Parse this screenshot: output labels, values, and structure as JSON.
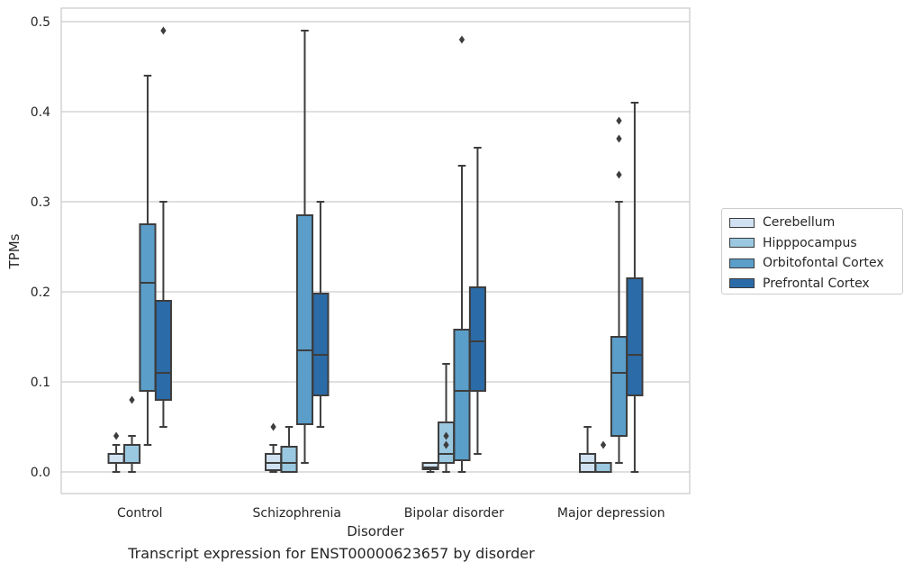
{
  "chart_data": {
    "type": "box",
    "xlabel": "Disorder",
    "ylabel": "TPMs",
    "caption": "Transcript expression for ENST00000623657 by disorder",
    "ylim": [
      -0.024,
      0.515
    ],
    "yticks": [
      0.0,
      0.1,
      0.2,
      0.3,
      0.4,
      0.5
    ],
    "ytick_labels": [
      "0.0",
      "0.1",
      "0.2",
      "0.3",
      "0.4",
      "0.5"
    ],
    "grid": true,
    "legend_position": "right",
    "categories": [
      "Control",
      "Schizophrenia",
      "Bipolar disorder",
      "Major depression"
    ],
    "series": [
      {
        "name": "Cerebellum",
        "color": "#d0e2f2",
        "boxes": [
          {
            "whislo": 0.0,
            "q1": 0.01,
            "med": 0.01,
            "q3": 0.02,
            "whishi": 0.03,
            "fliers": [
              0.04
            ]
          },
          {
            "whislo": 0.0,
            "q1": 0.002,
            "med": 0.01,
            "q3": 0.02,
            "whishi": 0.03,
            "fliers": [
              0.05
            ]
          },
          {
            "whislo": 0.0,
            "q1": 0.003,
            "med": 0.005,
            "q3": 0.01,
            "whishi": 0.01,
            "fliers": []
          },
          {
            "whislo": 0.0,
            "q1": 0.0,
            "med": 0.01,
            "q3": 0.02,
            "whishi": 0.05,
            "fliers": []
          }
        ]
      },
      {
        "name": "Hipppocampus",
        "color": "#9ac8e0",
        "boxes": [
          {
            "whislo": 0.0,
            "q1": 0.01,
            "med": 0.01,
            "q3": 0.03,
            "whishi": 0.04,
            "fliers": [
              0.08
            ]
          },
          {
            "whislo": 0.0,
            "q1": 0.0,
            "med": 0.01,
            "q3": 0.028,
            "whishi": 0.05,
            "fliers": []
          },
          {
            "whislo": 0.0,
            "q1": 0.01,
            "med": 0.02,
            "q3": 0.055,
            "whishi": 0.12,
            "fliers": [
              0.03,
              0.04
            ]
          },
          {
            "whislo": 0.0,
            "q1": 0.0,
            "med": 0.0,
            "q3": 0.01,
            "whishi": 0.01,
            "fliers": [
              0.03
            ]
          }
        ]
      },
      {
        "name": "Orbitofontal Cortex",
        "color": "#5a9ec9",
        "boxes": [
          {
            "whislo": 0.03,
            "q1": 0.09,
            "med": 0.21,
            "q3": 0.275,
            "whishi": 0.44,
            "fliers": []
          },
          {
            "whislo": 0.01,
            "q1": 0.053,
            "med": 0.135,
            "q3": 0.285,
            "whishi": 0.49,
            "fliers": []
          },
          {
            "whislo": 0.0,
            "q1": 0.013,
            "med": 0.09,
            "q3": 0.158,
            "whishi": 0.34,
            "fliers": [
              0.48
            ]
          },
          {
            "whislo": 0.01,
            "q1": 0.04,
            "med": 0.11,
            "q3": 0.15,
            "whishi": 0.3,
            "fliers": [
              0.33,
              0.37,
              0.39
            ]
          }
        ]
      },
      {
        "name": "Prefrontal Cortex",
        "color": "#2b6ba8",
        "boxes": [
          {
            "whislo": 0.05,
            "q1": 0.08,
            "med": 0.11,
            "q3": 0.19,
            "whishi": 0.3,
            "fliers": [
              0.49
            ]
          },
          {
            "whislo": 0.05,
            "q1": 0.085,
            "med": 0.13,
            "q3": 0.198,
            "whishi": 0.3,
            "fliers": []
          },
          {
            "whislo": 0.02,
            "q1": 0.09,
            "med": 0.145,
            "q3": 0.205,
            "whishi": 0.36,
            "fliers": []
          },
          {
            "whislo": 0.0,
            "q1": 0.085,
            "med": 0.13,
            "q3": 0.215,
            "whishi": 0.41,
            "fliers": []
          }
        ]
      }
    ]
  }
}
